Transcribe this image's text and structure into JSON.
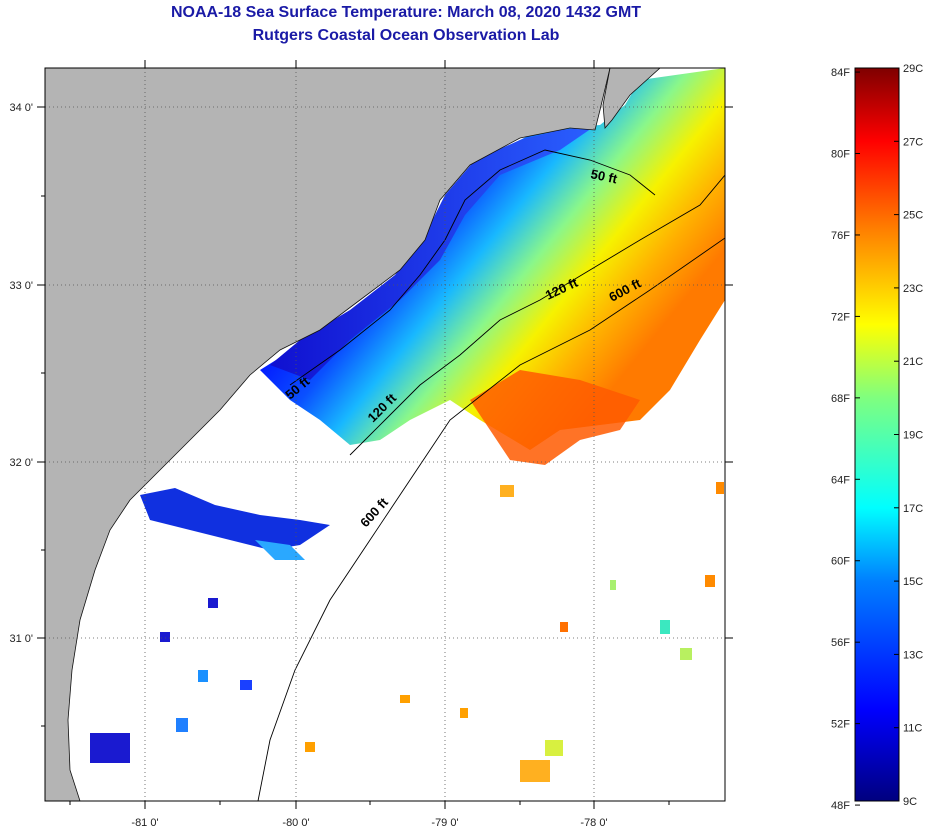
{
  "title": {
    "line1": "NOAA-18 Sea Surface Temperature:  March 08, 2020 1432 GMT",
    "line2": "Rutgers Coastal Ocean Observation Lab"
  },
  "map": {
    "lat_labels": [
      "34 0'",
      "33 0'",
      "32 0'",
      "31 0'"
    ],
    "lon_labels": [
      "-81 0'",
      "-80 0'",
      "-79 0'",
      "-78 0'"
    ],
    "contours": [
      {
        "label": "50 ft"
      },
      {
        "label": "120 ft"
      },
      {
        "label": "600 ft"
      },
      {
        "label": "120 ft"
      },
      {
        "label": "600 ft"
      },
      {
        "label": "50 ft"
      }
    ],
    "colors": {
      "land": "#b4b4b4",
      "nodata": "#ffffff",
      "frame": "#000000"
    }
  },
  "colorbar": {
    "f_labels": [
      "84F",
      "80F",
      "76F",
      "72F",
      "68F",
      "64F",
      "60F",
      "56F",
      "52F",
      "48F"
    ],
    "c_labels": [
      "29C",
      "27C",
      "25C",
      "23C",
      "21C",
      "19C",
      "17C",
      "15C",
      "13C",
      "11C",
      "9C"
    ],
    "range_c": [
      9,
      29
    ],
    "colormap": [
      "#00007f",
      "#0000ff",
      "#007fff",
      "#00ffff",
      "#7fff7f",
      "#ffff00",
      "#ff7f00",
      "#ff0000",
      "#7f0000"
    ]
  }
}
